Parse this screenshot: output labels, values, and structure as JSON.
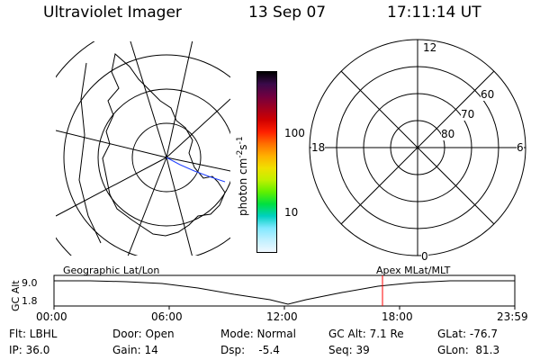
{
  "header": {
    "instrument": "Ultraviolet Imager",
    "date": "13 Sep 07",
    "time": "17:11:14 UT"
  },
  "colorbar": {
    "unit_label": "photon cm",
    "unit_exp1": "-2",
    "unit_s": "s",
    "unit_exp2": "-1",
    "ticks": [
      "100",
      "10"
    ],
    "colors": [
      "#000000",
      "#3a0a4a",
      "#700040",
      "#a00020",
      "#d00000",
      "#ff2000",
      "#ff7000",
      "#ffb000",
      "#f0e000",
      "#c0f000",
      "#60f000",
      "#00e040",
      "#00d0c0",
      "#80e8ff",
      "#c0f0ff",
      "#f0f8ff"
    ]
  },
  "polar_plot": {
    "mlt_labels": {
      "top": "12",
      "bottom": "0",
      "left": "18",
      "right": "6"
    },
    "lat_labels": [
      "60",
      "70",
      "80"
    ]
  },
  "orbit": {
    "ylabel": "GC Alt",
    "y_ticks": [
      "9.0",
      "1.8"
    ],
    "left_label": "Geographic Lat/Lon",
    "right_label": "Apex MLat/MLT",
    "x_ticks": [
      "00:00",
      "06:00",
      "12:00",
      "18:00",
      "23:59"
    ],
    "marker_time": "17:11"
  },
  "status": {
    "flt": "Flt: LBHL",
    "ip": "IP: 36.0",
    "door": "Door: Open",
    "gain": "Gain: 14",
    "mode": "Mode: Normal",
    "dsp": "Dsp:    -5.4",
    "gc_alt": "GC Alt: 7.1 Re",
    "seq": "Seq: 39",
    "glat": "GLat: -76.7",
    "glon": "GLon:  81.3"
  }
}
